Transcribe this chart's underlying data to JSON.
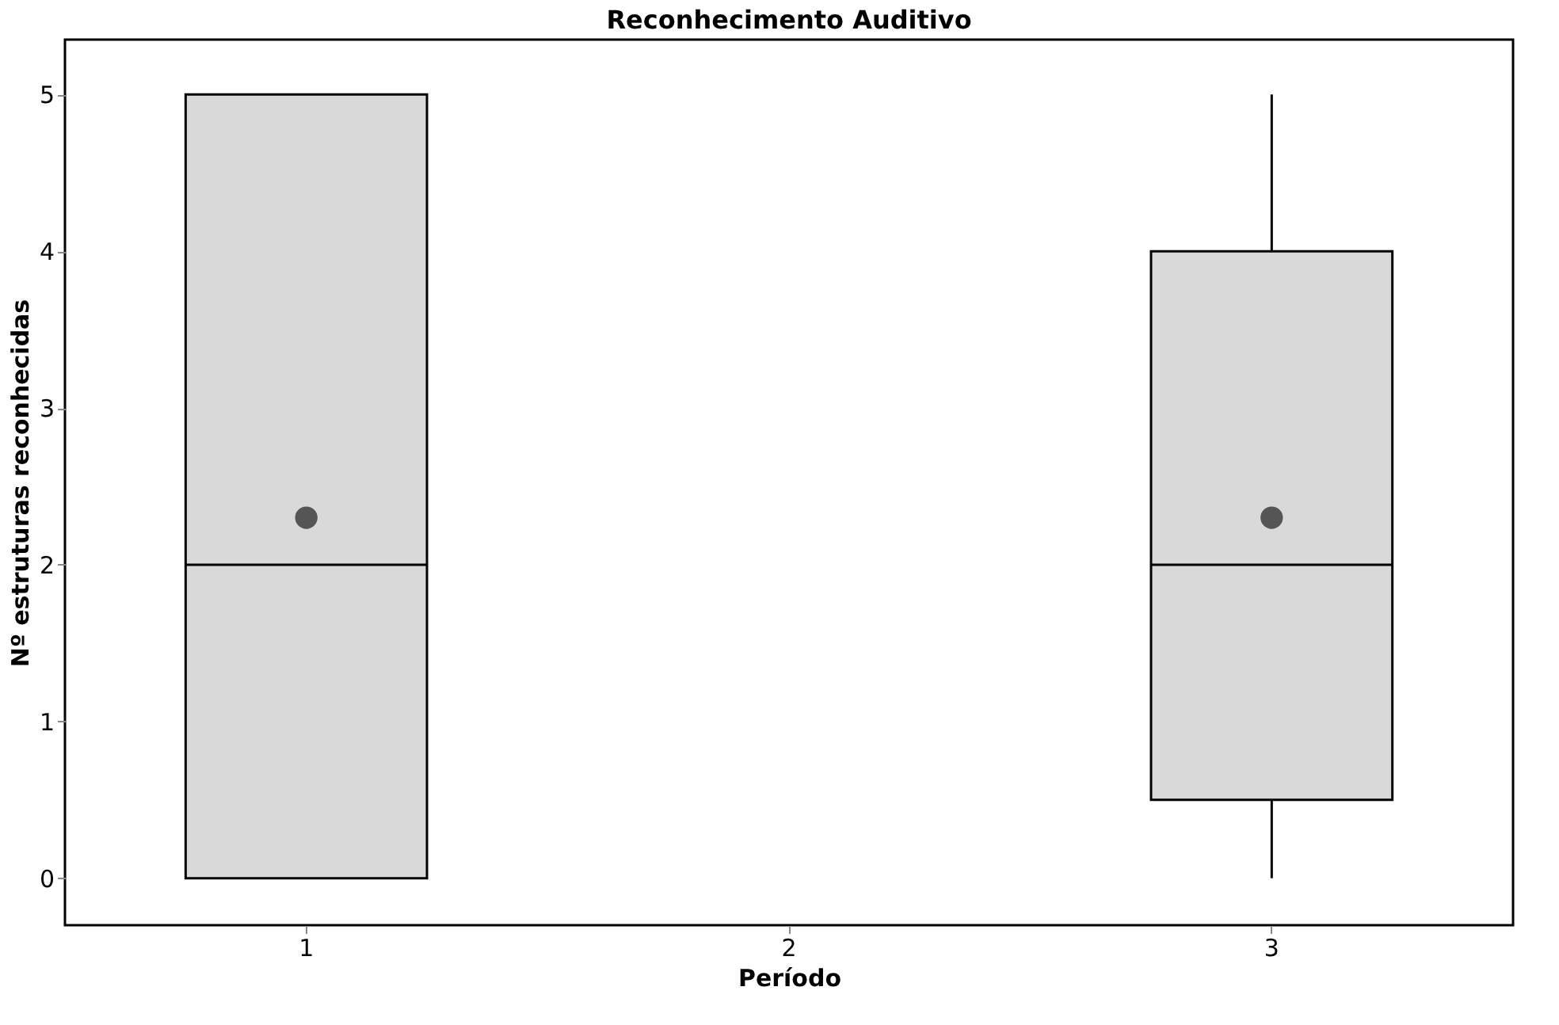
{
  "chart_data": {
    "type": "box",
    "title": "Reconhecimento Auditivo",
    "xlabel": "Período",
    "ylabel": "Nº estruturas reconhecidas",
    "categories": [
      "1",
      "2",
      "3"
    ],
    "boxes": [
      {
        "low": 0,
        "q1": 0,
        "median": 2,
        "q3": 5,
        "high": 5,
        "mean": 2.3
      },
      null,
      {
        "low": 0,
        "q1": 0.5,
        "median": 2,
        "q3": 4,
        "high": 5,
        "mean": 2.3
      }
    ],
    "color": "#d9d9d9",
    "ylim": [
      -0.3,
      5.35
    ],
    "yticks": [
      0,
      1,
      2,
      3,
      4,
      5
    ],
    "grid": false
  }
}
